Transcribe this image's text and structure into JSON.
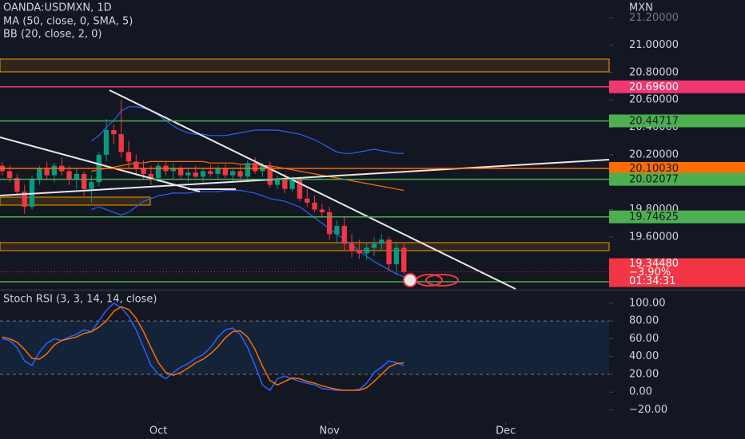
{
  "chart_data": [
    {
      "type": "candlestick",
      "title": "OANDA:USDMXN, 1D",
      "currency": "MXN",
      "indicators": [
        "MA (50, close, 0, SMA, 5)",
        "BB (20, close, 2, 0)"
      ],
      "up_color": "#089981",
      "down_color": "#f23645",
      "xlim": [
        -0.3,
        81.6
      ],
      "ylim": [
        19.22,
        21.33
      ],
      "yticks": [
        {
          "value": 21.2,
          "label": "21.20000"
        },
        {
          "value": 21.0,
          "label": "21.00000"
        },
        {
          "value": 20.8,
          "label": "20.80000"
        },
        {
          "value": 20.6,
          "label": "20.60000"
        },
        {
          "value": 20.4,
          "label": "20.40000"
        },
        {
          "value": 20.2,
          "label": "20.20000"
        },
        {
          "value": 19.8,
          "label": "19.80000"
        },
        {
          "value": 19.6,
          "label": "19.60000"
        }
      ],
      "grid": false,
      "open": [
        20.12,
        20.08,
        20.03,
        19.93,
        19.82,
        20.02,
        20.1,
        20.05,
        20.12,
        20.08,
        20.02,
        20.06,
        19.95,
        20.0,
        20.2,
        20.38,
        20.35,
        20.22,
        20.15,
        20.1,
        20.06,
        20.03,
        20.12,
        20.08,
        20.1,
        20.05,
        20.07,
        20.04,
        20.08,
        20.06,
        20.1,
        20.05,
        20.08,
        20.04,
        20.14,
        20.08,
        20.12,
        19.98,
        20.02,
        19.95,
        20.02,
        19.88,
        19.85,
        19.8,
        19.78,
        19.62,
        19.68,
        19.55,
        19.5,
        19.48,
        19.52,
        19.55,
        19.58,
        19.4,
        19.52
      ],
      "high": [
        20.15,
        20.12,
        20.06,
        19.98,
        20.05,
        20.12,
        20.15,
        20.14,
        20.18,
        20.12,
        20.1,
        20.08,
        20.05,
        20.22,
        20.46,
        20.42,
        20.6,
        20.3,
        20.2,
        20.16,
        20.12,
        20.14,
        20.15,
        20.14,
        20.12,
        20.1,
        20.12,
        20.1,
        20.13,
        20.12,
        20.13,
        20.1,
        20.12,
        20.16,
        20.18,
        20.14,
        20.15,
        20.05,
        20.06,
        20.04,
        20.04,
        19.95,
        19.9,
        19.84,
        19.82,
        19.72,
        19.75,
        19.62,
        19.58,
        19.56,
        19.6,
        19.62,
        19.6,
        19.55,
        19.56
      ],
      "low": [
        20.05,
        20.0,
        19.9,
        19.77,
        19.8,
        19.98,
        20.02,
        20.0,
        20.05,
        19.98,
        19.95,
        19.9,
        19.85,
        19.97,
        20.15,
        20.28,
        20.18,
        20.1,
        20.05,
        20.02,
        19.98,
        20.0,
        20.05,
        20.02,
        20.02,
        20.0,
        20.03,
        20.0,
        20.04,
        20.02,
        20.03,
        20.0,
        20.02,
        20.0,
        20.06,
        20.04,
        19.96,
        19.95,
        19.92,
        19.93,
        19.86,
        19.82,
        19.78,
        19.74,
        19.58,
        19.55,
        19.5,
        19.45,
        19.44,
        19.43,
        19.46,
        19.5,
        19.35,
        19.32,
        19.33
      ],
      "close": [
        20.08,
        20.03,
        19.93,
        19.82,
        20.02,
        20.1,
        20.05,
        20.12,
        20.08,
        20.02,
        20.06,
        19.95,
        20.0,
        20.2,
        20.38,
        20.35,
        20.22,
        20.15,
        20.1,
        20.06,
        20.03,
        20.12,
        20.08,
        20.1,
        20.05,
        20.07,
        20.04,
        20.08,
        20.06,
        20.1,
        20.05,
        20.08,
        20.04,
        20.14,
        20.08,
        20.12,
        19.98,
        20.02,
        19.95,
        20.02,
        19.88,
        19.85,
        19.8,
        19.78,
        19.62,
        19.68,
        19.55,
        19.5,
        19.48,
        19.52,
        19.55,
        19.58,
        19.4,
        19.52,
        19.3448
      ],
      "series": [
        {
          "color": "#2962ff",
          "values": [
            null,
            null,
            null,
            null,
            null,
            null,
            null,
            null,
            null,
            null,
            null,
            null,
            20.3,
            20.34,
            20.4,
            20.45,
            20.52,
            20.55,
            20.55,
            20.54,
            20.52,
            20.49,
            20.45,
            20.41,
            20.38,
            20.36,
            20.35,
            20.35,
            20.34,
            20.34,
            20.34,
            20.35,
            20.36,
            20.37,
            20.38,
            20.38,
            20.38,
            20.38,
            20.37,
            20.36,
            20.35,
            20.33,
            20.31,
            20.28,
            20.25,
            20.22,
            20.21,
            20.21,
            20.22,
            20.23,
            20.24,
            20.23,
            20.22,
            20.21,
            20.21
          ]
        },
        {
          "color": "#2962ff",
          "values": [
            null,
            null,
            null,
            null,
            null,
            null,
            null,
            null,
            null,
            null,
            null,
            null,
            19.8,
            19.82,
            19.8,
            19.78,
            19.76,
            19.78,
            19.82,
            19.86,
            19.88,
            19.9,
            19.91,
            19.92,
            19.92,
            19.92,
            19.93,
            19.93,
            19.93,
            19.93,
            19.94,
            19.94,
            19.94,
            19.93,
            19.92,
            19.9,
            19.88,
            19.87,
            19.86,
            19.84,
            19.82,
            19.78,
            19.74,
            19.7,
            19.66,
            19.62,
            19.58,
            19.54,
            19.5,
            19.46,
            19.42,
            19.39,
            19.36,
            19.33,
            19.31
          ]
        },
        {
          "color": "#ff6d00",
          "values": [
            null,
            null,
            null,
            null,
            null,
            null,
            null,
            null,
            null,
            null,
            null,
            null,
            20.08,
            20.09,
            20.1,
            20.11,
            20.12,
            20.13,
            20.14,
            20.14,
            20.15,
            20.15,
            20.15,
            20.15,
            20.15,
            20.15,
            20.15,
            20.15,
            20.14,
            20.14,
            20.14,
            20.14,
            20.13,
            20.13,
            20.13,
            20.12,
            20.12,
            20.11,
            20.1,
            20.09,
            20.08,
            20.07,
            20.06,
            20.05,
            20.04,
            20.03,
            20.02,
            20.01,
            20.0,
            19.99,
            19.98,
            19.97,
            19.96,
            19.95,
            19.94
          ]
        }
      ],
      "levels": [
        {
          "value": 20.696,
          "label": "20.69600",
          "color": "#f23674",
          "text_color": "#ffffff"
        },
        {
          "value": 20.44717,
          "label": "20.44717",
          "color": "#4caf50",
          "text_color": "#131722"
        },
        {
          "value": 20.1003,
          "label": "20.10030",
          "color": "#ff6d00",
          "text_color": "#131722"
        },
        {
          "value": 20.02077,
          "label": "20.02077",
          "color": "#4caf50",
          "text_color": "#131722"
        },
        {
          "value": 19.74625,
          "label": "19.74625",
          "color": "#4caf50",
          "text_color": "#131722"
        }
      ],
      "last_price": {
        "value": 19.3448,
        "label": "19.34480",
        "change": "−3.90%",
        "countdown": "01:34:31",
        "color": "#f23645"
      }
    },
    {
      "type": "line",
      "title": "Stoch RSI (3, 3, 14, 14, close)",
      "xlim": [
        -0.3,
        81.6
      ],
      "ylim": [
        -33,
        112.4
      ],
      "xticks": [
        {
          "value": 21,
          "label": "Oct"
        },
        {
          "value": 44,
          "label": "Nov"
        },
        {
          "value": 67.7,
          "label": "Dec"
        }
      ],
      "yticks": [
        {
          "value": 100,
          "label": "100.00"
        },
        {
          "value": 80,
          "label": "80.00"
        },
        {
          "value": 60,
          "label": "60.00"
        },
        {
          "value": 40,
          "label": "40.00"
        },
        {
          "value": 20,
          "label": "20.00"
        },
        {
          "value": 0,
          "label": "0.00"
        },
        {
          "value": -20,
          "label": "−20.00"
        }
      ],
      "band": [
        20,
        80
      ],
      "band_color": "rgba(33,150,243,0.10)",
      "series": [
        {
          "color": "#2962ff",
          "values": [
            60,
            58,
            50,
            35,
            30,
            45,
            55,
            60,
            58,
            62,
            65,
            70,
            68,
            80,
            92,
            100,
            95,
            85,
            70,
            50,
            30,
            20,
            15,
            22,
            28,
            32,
            38,
            42,
            50,
            62,
            70,
            72,
            65,
            50,
            30,
            8,
            2,
            15,
            18,
            15,
            12,
            10,
            8,
            4,
            3,
            2,
            2,
            2,
            3,
            10,
            22,
            28,
            35,
            33,
            30
          ]
        },
        {
          "color": "#ff6d00",
          "values": [
            62,
            60,
            56,
            48,
            38,
            37,
            43,
            53,
            58,
            60,
            62,
            66,
            68,
            73,
            80,
            91,
            96,
            93,
            83,
            68,
            50,
            33,
            22,
            19,
            22,
            27,
            33,
            37,
            43,
            51,
            61,
            68,
            69,
            62,
            48,
            29,
            13,
            8,
            12,
            16,
            15,
            12,
            10,
            7,
            5,
            3,
            2,
            2,
            2,
            5,
            12,
            20,
            28,
            32,
            33
          ]
        }
      ]
    }
  ]
}
